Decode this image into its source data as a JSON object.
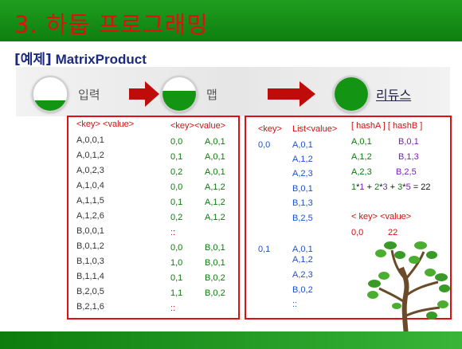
{
  "header": {
    "title": "3. 하둡 프로그래밍"
  },
  "subtitle": {
    "bracket": "[예제]",
    "name": "MatrixProduct"
  },
  "stages": {
    "input": "입력",
    "map": "맵",
    "reduce": "리듀스"
  },
  "left_box": {
    "input_header": "<key> <value>",
    "input_rows": [
      "A,0,0,1",
      "A,0,1,2",
      "A,0,2,3",
      "A,1,0,4",
      "A,1,1,5",
      "A,1,2,6",
      "B,0,0,1",
      "B,0,1,2",
      "B,1,0,3",
      "B,1,1,4",
      "B,2,0,5",
      "B,2,1,6"
    ],
    "map_header": "<key><value>",
    "map_rows": [
      {
        "key": "0,0",
        "value": "A,0,1"
      },
      {
        "key": "0,1",
        "value": "A,0,1"
      },
      {
        "key": "0,2",
        "value": "A,0,1"
      },
      {
        "key": "0,0",
        "value": "A,1,2"
      },
      {
        "key": "0,1",
        "value": "A,1,2"
      },
      {
        "key": "0,2",
        "value": "A,1,2"
      },
      {
        "key": "::",
        "value": ""
      },
      {
        "key": "0,0",
        "value": "B,0,1"
      },
      {
        "key": "1,0",
        "value": "B,0,1"
      },
      {
        "key": "0,1",
        "value": "B,0,2"
      },
      {
        "key": "1,1",
        "value": "B,0,2"
      },
      {
        "key": "::",
        "value": ""
      }
    ]
  },
  "right_box": {
    "key_header": "<key>",
    "list_header": "List<value>",
    "group1_key": "0,0",
    "group1_values": [
      "A,0,1",
      "A,1,2",
      "A,2,3",
      "B,0,1",
      "B,1,3",
      "B,2,5"
    ],
    "group2_key": "0,1",
    "group2_values": [
      "A,0,1",
      "A,1,2",
      "A,2,3",
      "B,0,2",
      "::"
    ],
    "hash_header": "[ hashA ] [ hashB ]",
    "hash_rows": [
      {
        "a": "A,0,1",
        "b": "B,0,1"
      },
      {
        "a": "A,1,2",
        "b": "B,1,3"
      },
      {
        "a": "A,2,3",
        "b": "B,2,5"
      }
    ],
    "formula": {
      "p1": "1",
      "s1": "*",
      "p2": "1",
      "s2": " + ",
      "p3": "2",
      "s3": "*",
      "p4": "3",
      "s4": " + ",
      "p5": "3",
      "s5": "*",
      "p6": "5",
      "s6": " = ",
      "p7": "22"
    },
    "out_header": "< key> <value>",
    "out_key": "0,0",
    "out_value": "22"
  },
  "colors": {
    "header_green": "#0e7f0e",
    "title_red": "#e01010",
    "box_red": "#dd1111",
    "fill_green": "#139413"
  }
}
